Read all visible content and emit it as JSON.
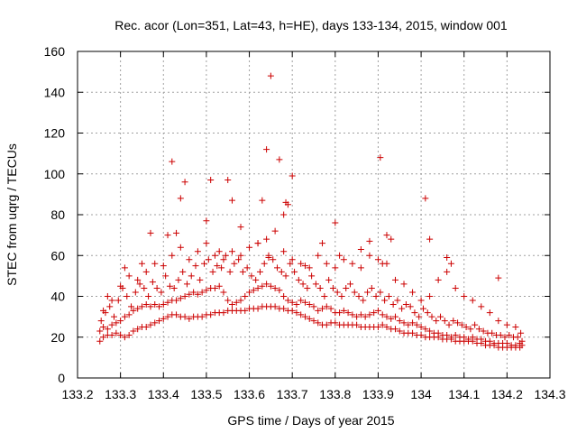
{
  "chart_data": {
    "type": "scatter",
    "title": "Rec. acor (Lon=351, Lat=43, h=HE), days 133-134, 2015, window 001",
    "xlabel": "GPS time / Days of year 2015",
    "ylabel": "STEC from uqrg / TECUs",
    "xlim": [
      133.2,
      134.3
    ],
    "ylim": [
      0,
      160
    ],
    "x_ticks": [
      133.2,
      133.3,
      133.4,
      133.5,
      133.6,
      133.7,
      133.8,
      133.9,
      134.0,
      134.1,
      134.2,
      134.3
    ],
    "x_tick_labels": [
      "133.2",
      "133.3",
      "133.4",
      "133.5",
      "133.6",
      "133.7",
      "133.8",
      "133.9",
      "134",
      "134.1",
      "134.2",
      "134.3"
    ],
    "y_ticks": [
      0,
      20,
      40,
      60,
      80,
      100,
      120,
      140,
      160
    ],
    "y_tick_labels": [
      "0",
      "20",
      "40",
      "60",
      "80",
      "100",
      "120",
      "140",
      "160"
    ],
    "grid": true,
    "marker": "+",
    "color": "#cc0000",
    "series": [
      {
        "x": [
          133.252,
          133.26,
          133.27,
          133.28,
          133.29,
          133.3,
          133.31,
          133.32,
          133.33,
          133.34,
          133.35,
          133.36,
          133.37,
          133.38,
          133.39,
          133.4,
          133.41,
          133.42,
          133.43,
          133.44,
          133.45,
          133.46,
          133.47,
          133.48,
          133.49,
          133.5,
          133.51,
          133.52,
          133.53,
          133.54,
          133.55,
          133.56,
          133.57,
          133.58,
          133.59,
          133.6,
          133.61,
          133.62,
          133.63,
          133.64,
          133.65,
          133.66,
          133.67,
          133.68,
          133.69,
          133.7,
          133.71,
          133.72,
          133.73,
          133.74,
          133.75,
          133.76,
          133.77,
          133.78,
          133.79,
          133.8,
          133.81,
          133.82,
          133.83,
          133.84,
          133.85,
          133.86,
          133.87,
          133.88,
          133.89,
          133.9,
          133.91,
          133.92,
          133.93,
          133.94,
          133.95,
          133.96,
          133.97,
          133.98,
          133.99,
          134.0,
          134.01,
          134.02,
          134.03,
          134.04,
          134.05,
          134.06,
          134.07,
          134.08,
          134.09,
          134.1,
          134.11,
          134.12,
          134.13,
          134.14,
          134.15,
          134.16,
          134.17,
          134.18,
          134.19,
          134.2,
          134.21,
          134.22,
          134.23,
          134.235
        ],
        "y": [
          18,
          20,
          21,
          21,
          22,
          21,
          20,
          21,
          23,
          24,
          25,
          25,
          26,
          27,
          28,
          29,
          30,
          31,
          31,
          30,
          30,
          29,
          30,
          30,
          30,
          31,
          31,
          32,
          32,
          32,
          33,
          33,
          33,
          33,
          33,
          34,
          34,
          34,
          35,
          35,
          35,
          35,
          34,
          34,
          33,
          33,
          32,
          31,
          30,
          29,
          28,
          27,
          26,
          26,
          27,
          27,
          26,
          26,
          26,
          26,
          26,
          25,
          25,
          25,
          25,
          25,
          26,
          25,
          24,
          24,
          23,
          22,
          22,
          22,
          21,
          21,
          20,
          20,
          20,
          20,
          19,
          19,
          19,
          18,
          18,
          18,
          18,
          18,
          17,
          17,
          16,
          16,
          16,
          15,
          15,
          15,
          15,
          15,
          15,
          16
        ]
      },
      {
        "x": [
          133.252,
          133.26,
          133.27,
          133.28,
          133.29,
          133.3,
          133.31,
          133.32,
          133.33,
          133.34,
          133.35,
          133.36,
          133.37,
          133.38,
          133.39,
          133.4,
          133.41,
          133.42,
          133.43,
          133.44,
          133.45,
          133.46,
          133.47,
          133.48,
          133.49,
          133.5,
          133.51,
          133.52,
          133.53,
          133.54,
          133.55,
          133.56,
          133.57,
          133.58,
          133.59,
          133.6,
          133.61,
          133.62,
          133.63,
          133.64,
          133.65,
          133.66,
          133.67,
          133.68,
          133.69,
          133.7,
          133.71,
          133.72,
          133.73,
          133.74,
          133.75,
          133.76,
          133.77,
          133.78,
          133.79,
          133.8,
          133.81,
          133.82,
          133.83,
          133.84,
          133.85,
          133.86,
          133.87,
          133.88,
          133.89,
          133.9,
          133.91,
          133.92,
          133.93,
          133.94,
          133.95,
          133.96,
          133.97,
          133.98,
          133.99,
          134.0,
          134.01,
          134.02,
          134.03,
          134.04,
          134.05,
          134.06,
          134.07,
          134.08,
          134.09,
          134.1,
          134.11,
          134.12,
          134.13,
          134.14,
          134.15,
          134.16,
          134.17,
          134.18,
          134.19,
          134.2,
          134.21,
          134.22,
          134.23,
          134.235
        ],
        "y": [
          23,
          25,
          24,
          26,
          27,
          28,
          30,
          31,
          33,
          34,
          35,
          36,
          35,
          36,
          35,
          36,
          37,
          38,
          38,
          39,
          40,
          41,
          42,
          41,
          42,
          43,
          44,
          44,
          45,
          42,
          38,
          36,
          37,
          38,
          40,
          42,
          43,
          44,
          45,
          46,
          45,
          44,
          43,
          40,
          38,
          37,
          36,
          38,
          37,
          36,
          35,
          33,
          34,
          35,
          34,
          32,
          32,
          33,
          32,
          31,
          30,
          31,
          30,
          31,
          32,
          33,
          31,
          30,
          29,
          30,
          28,
          27,
          26,
          27,
          26,
          25,
          24,
          23,
          22,
          22,
          21,
          21,
          20,
          21,
          20,
          20,
          19,
          20,
          19,
          19,
          18,
          18,
          17,
          17,
          17,
          17,
          16,
          16,
          17,
          18
        ]
      },
      {
        "x": [
          133.255,
          133.265,
          133.275,
          133.285,
          133.295,
          133.305,
          133.315,
          133.325,
          133.335,
          133.345,
          133.355,
          133.365,
          133.375,
          133.385,
          133.395,
          133.405,
          133.415,
          133.425,
          133.435,
          133.445,
          133.455,
          133.465,
          133.475,
          133.485,
          133.495,
          133.505,
          133.515,
          133.525,
          133.535,
          133.545,
          133.555,
          133.565,
          133.575,
          133.585,
          133.595,
          133.605,
          133.615,
          133.625,
          133.635,
          133.645,
          133.655,
          133.665,
          133.675,
          133.685,
          133.695,
          133.705,
          133.715,
          133.725,
          133.735,
          133.745,
          133.755,
          133.765,
          133.775,
          133.785,
          133.795,
          133.805,
          133.815,
          133.825,
          133.835,
          133.845,
          133.855,
          133.865,
          133.875,
          133.885,
          133.895,
          133.905,
          133.915,
          133.925,
          133.935,
          133.945,
          133.955,
          133.965,
          133.975,
          133.985,
          133.995,
          134.005,
          134.015,
          134.025,
          134.035,
          134.045,
          134.055,
          134.065,
          134.075,
          134.085,
          134.095,
          134.105,
          134.115,
          134.125,
          134.135,
          134.145,
          134.155,
          134.165,
          134.175,
          134.185,
          134.195,
          134.205,
          134.215,
          134.225,
          134.232
        ],
        "y": [
          28,
          32,
          35,
          30,
          38,
          44,
          40,
          35,
          42,
          46,
          44,
          40,
          47,
          44,
          42,
          50,
          45,
          44,
          48,
          52,
          46,
          50,
          55,
          48,
          56,
          58,
          52,
          55,
          54,
          60,
          52,
          56,
          58,
          52,
          54,
          50,
          48,
          52,
          56,
          60,
          58,
          54,
          52,
          50,
          56,
          52,
          48,
          46,
          44,
          50,
          46,
          44,
          40,
          48,
          44,
          42,
          40,
          44,
          46,
          42,
          40,
          38,
          42,
          44,
          40,
          42,
          38,
          40,
          36,
          38,
          34,
          36,
          35,
          32,
          30,
          34,
          32,
          30,
          28,
          30,
          28,
          26,
          28,
          27,
          26,
          25,
          24,
          26,
          24,
          23,
          22,
          22,
          21,
          21,
          20,
          21,
          20,
          20,
          22
        ]
      },
      {
        "x": [
          133.26,
          133.28,
          133.3,
          133.32,
          133.34,
          133.36,
          133.38,
          133.4,
          133.42,
          133.44,
          133.46,
          133.48,
          133.5,
          133.52,
          133.54,
          133.56,
          133.58,
          133.6,
          133.62,
          133.64,
          133.66,
          133.68,
          133.7,
          133.72,
          133.74,
          133.76,
          133.78,
          133.8,
          133.82,
          133.84,
          133.86,
          133.88,
          133.9,
          133.92,
          133.94,
          133.96,
          133.98,
          134.0,
          134.02,
          134.04,
          134.06,
          134.08,
          134.1,
          134.12,
          134.14,
          134.16,
          134.18,
          134.2,
          134.22
        ],
        "y": [
          33,
          38,
          45,
          50,
          48,
          52,
          56,
          55,
          60,
          64,
          58,
          62,
          66,
          60,
          58,
          62,
          60,
          64,
          66,
          68,
          72,
          62,
          58,
          56,
          54,
          60,
          56,
          54,
          58,
          56,
          54,
          60,
          58,
          56,
          48,
          46,
          42,
          38,
          40,
          48,
          52,
          44,
          40,
          38,
          35,
          32,
          28,
          26,
          25
        ]
      },
      {
        "x": [
          133.27,
          133.31,
          133.35,
          133.37,
          133.41,
          133.42,
          133.43,
          133.44,
          133.45,
          133.5,
          133.51,
          133.53,
          133.55,
          133.56,
          133.58,
          133.62,
          133.63,
          133.64,
          133.645,
          133.65,
          133.67,
          133.68,
          133.685,
          133.69,
          133.7,
          133.73,
          133.77,
          133.8,
          133.81,
          133.86,
          133.88,
          133.905,
          133.91,
          133.92,
          133.93,
          134.01,
          134.02,
          134.06,
          134.07,
          134.18
        ],
        "y": [
          40,
          54,
          56,
          71,
          70,
          106,
          71,
          88,
          96,
          77,
          97,
          62,
          97,
          87,
          74,
          66,
          87,
          112,
          59,
          148,
          107,
          80,
          86,
          85,
          99,
          55,
          66,
          76,
          60,
          63,
          67,
          108,
          56,
          70,
          68,
          88,
          68,
          59,
          56,
          49
        ]
      }
    ]
  }
}
